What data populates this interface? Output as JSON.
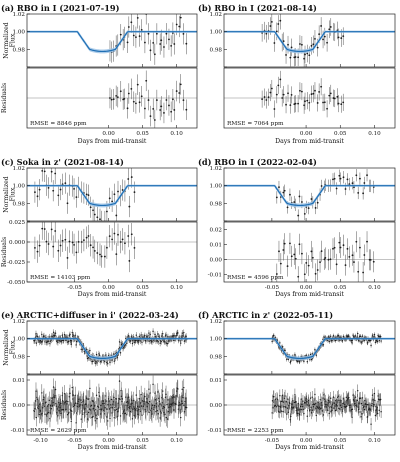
{
  "chart_data": {
    "type": "scatter",
    "labels": {
      "norm_flux": "Normalized Flux",
      "residuals": "Residuals",
      "xlabel": "Days from mid-transit"
    },
    "panels": [
      {
        "title": "(a) RBO in I (2021-07-19)",
        "xlim": [
          -0.12,
          0.13
        ],
        "xticks": [
          0.0,
          0.05,
          0.1
        ],
        "xtick_labels": [
          "0.00",
          "0.05",
          "0.10"
        ],
        "flux_ylim": [
          0.96,
          1.02
        ],
        "flux_yticks": [
          0.96,
          0.98,
          1.0,
          1.02
        ],
        "flux_ytick_labels": [
          "",
          "0.98",
          "1.00",
          "1.02"
        ],
        "res_ylim": [
          -0.035,
          0.035
        ],
        "res_yticks": [],
        "res_ytick_labels": [],
        "rmse": "RMSE = 8846 ppm",
        "model": {
          "t1": -0.046,
          "t2": -0.028,
          "t3": 0.01,
          "t4": 0.028,
          "depth": 0.02
        },
        "data_range": [
          0.0,
          0.115
        ],
        "n_points": 36,
        "flux_err": 0.012,
        "res_err": 0.012
      },
      {
        "title": "(b) RBO in I (2021-08-14)",
        "xlim": [
          -0.12,
          0.13
        ],
        "xticks": [
          0.0,
          0.05,
          0.1
        ],
        "xtick_labels": [
          "0.00",
          "0.05",
          "0.10"
        ],
        "flux_ylim": [
          0.96,
          1.02
        ],
        "flux_yticks": [
          0.96,
          0.98,
          1.0,
          1.02
        ],
        "flux_ytick_labels": [
          "",
          "0.98",
          "1.00",
          "1.02"
        ],
        "res_ylim": [
          -0.035,
          0.035
        ],
        "res_yticks": [],
        "res_ytick_labels": [],
        "rmse": "RMSE = 7064 ppm",
        "model": {
          "t1": -0.046,
          "t2": -0.028,
          "t3": 0.01,
          "t4": 0.028,
          "depth": 0.02
        },
        "data_range": [
          -0.065,
          0.055
        ],
        "n_points": 42,
        "flux_err": 0.01,
        "res_err": 0.01
      },
      {
        "title": "(c) Soka in z' (2021-08-14)",
        "xlim": [
          -0.12,
          0.13
        ],
        "xticks": [
          -0.05,
          0.0,
          0.05,
          0.1
        ],
        "xtick_labels": [
          "-0.05",
          "0.00",
          "0.05",
          "0.10"
        ],
        "flux_ylim": [
          0.96,
          1.02
        ],
        "flux_yticks": [
          0.96,
          0.98,
          1.0,
          1.02
        ],
        "flux_ytick_labels": [
          "",
          "0.98",
          "1.00",
          "1.02"
        ],
        "res_ylim": [
          -0.05,
          0.025
        ],
        "res_yticks": [
          -0.05,
          -0.025,
          0.0,
          0.025
        ],
        "res_ytick_labels": [
          "-0.050",
          "-0.025",
          "0.000",
          "0.025"
        ],
        "rmse": "RMSE = 14103 ppm",
        "model": {
          "t1": -0.046,
          "t2": -0.028,
          "t3": 0.01,
          "t4": 0.028,
          "depth": 0.02
        },
        "data_range": [
          -0.11,
          0.04
        ],
        "n_points": 44,
        "flux_err": 0.012,
        "res_err": 0.014
      },
      {
        "title": "(d) RBO in I (2022-02-04)",
        "xlim": [
          -0.12,
          0.13
        ],
        "xticks": [
          -0.05,
          0.0,
          0.05,
          0.1
        ],
        "xtick_labels": [
          "-0.05",
          "0.00",
          "0.05",
          "0.10"
        ],
        "flux_ylim": [
          0.96,
          1.02
        ],
        "flux_yticks": [
          0.96,
          0.98,
          1.0,
          1.02
        ],
        "flux_ytick_labels": [
          "",
          "0.98",
          "1.00",
          "1.02"
        ],
        "res_ylim": [
          -0.015,
          0.025
        ],
        "res_yticks": [
          -0.01,
          0.0,
          0.01,
          0.02
        ],
        "res_ytick_labels": [
          "-0.01",
          "0.00",
          "0.01",
          "0.02"
        ],
        "rmse": "RMSE = 4596 ppm",
        "model": {
          "t1": -0.046,
          "t2": -0.028,
          "t3": 0.01,
          "t4": 0.028,
          "depth": 0.02
        },
        "data_range": [
          -0.045,
          0.1
        ],
        "n_points": 46,
        "flux_err": 0.007,
        "res_err": 0.007
      },
      {
        "title": "(e) ARCTIC+diffuser in i' (2022-03-24)",
        "xlim": [
          -0.12,
          0.13
        ],
        "xticks": [
          -0.1,
          -0.05,
          0.0,
          0.05,
          0.1
        ],
        "xtick_labels": [
          "-0.10",
          "-0.05",
          "0.00",
          "0.05",
          "0.10"
        ],
        "flux_ylim": [
          0.96,
          1.02
        ],
        "flux_yticks": [
          0.96,
          0.98,
          1.0,
          1.02
        ],
        "flux_ytick_labels": [
          "",
          "0.98",
          "1.00",
          "1.02"
        ],
        "res_ylim": [
          -0.012,
          0.012
        ],
        "res_yticks": [
          -0.01,
          0.0,
          0.01
        ],
        "res_ytick_labels": [
          "-0.01",
          "0.00",
          "0.01"
        ],
        "rmse": "RMSE = 2629 ppm",
        "model": {
          "t1": -0.046,
          "t2": -0.028,
          "t3": 0.01,
          "t4": 0.028,
          "depth": 0.02
        },
        "data_range": [
          -0.11,
          0.115
        ],
        "n_points": 320,
        "flux_err": 0.0035,
        "res_err": 0.0035
      },
      {
        "title": "(f) ARCTIC in z' (2022-05-11)",
        "xlim": [
          -0.12,
          0.13
        ],
        "xticks": [
          -0.05,
          0.0,
          0.05,
          0.1
        ],
        "xtick_labels": [
          "-0.05",
          "0.00",
          "0.05",
          "0.10"
        ],
        "flux_ylim": [
          0.96,
          1.02
        ],
        "flux_yticks": [
          0.96,
          0.98,
          1.0,
          1.02
        ],
        "flux_ytick_labels": [
          "",
          "0.98",
          "1.00",
          "1.02"
        ],
        "res_ylim": [
          -0.012,
          0.012
        ],
        "res_yticks": [
          -0.01,
          0.0,
          0.01
        ],
        "res_ytick_labels": [
          "-0.01",
          "0.00",
          "0.01"
        ],
        "rmse": "RMSE = 2253 ppm",
        "model": {
          "t1": -0.046,
          "t2": -0.028,
          "t3": 0.01,
          "t4": 0.028,
          "depth": 0.02
        },
        "data_range": [
          -0.05,
          0.11
        ],
        "n_points": 230,
        "flux_err": 0.0025,
        "res_err": 0.0025
      }
    ],
    "colors": {
      "model": "#1f6fb4",
      "model_band": "#9ec3e6",
      "points": "#1a1a1a",
      "errorbars": "#555555",
      "zero_line": "#888888"
    }
  }
}
